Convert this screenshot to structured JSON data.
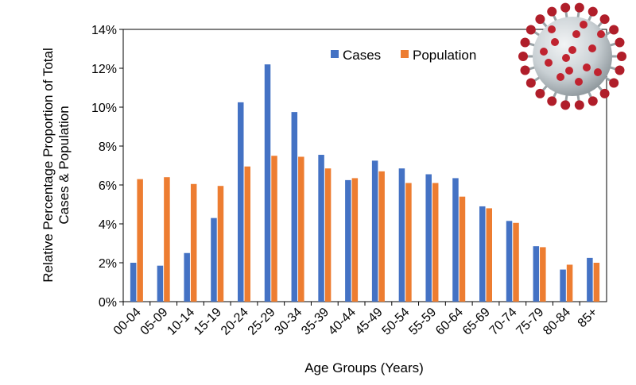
{
  "chart_data": {
    "type": "bar",
    "categories": [
      "00-04",
      "05-09",
      "10-14",
      "15-19",
      "20-24",
      "25-29",
      "30-34",
      "35-39",
      "40-44",
      "45-49",
      "50-54",
      "55-59",
      "60-64",
      "65-69",
      "70-74",
      "75-79",
      "80-84",
      "85+"
    ],
    "series": [
      {
        "name": "Cases",
        "color": "#4472C4",
        "values": [
          2.0,
          1.85,
          2.5,
          4.3,
          10.25,
          12.2,
          9.75,
          7.55,
          6.25,
          7.25,
          6.85,
          6.55,
          6.35,
          4.9,
          4.15,
          2.85,
          1.65,
          2.25
        ]
      },
      {
        "name": "Population",
        "color": "#ED7D31",
        "values": [
          6.3,
          6.4,
          6.05,
          5.95,
          6.95,
          7.5,
          7.45,
          6.85,
          6.35,
          6.7,
          6.1,
          6.1,
          5.4,
          4.8,
          4.05,
          2.8,
          1.9,
          2.0
        ]
      }
    ],
    "xlabel": "Age Groups (Years)",
    "ylabel_lines": [
      "Relative Percentage Proportion of Total",
      "Cases & Population"
    ],
    "ylim": [
      0,
      14
    ],
    "yticks": [
      0,
      2,
      4,
      6,
      8,
      10,
      12,
      14
    ],
    "ytick_suffix": "%",
    "grid": false,
    "legend": "top-center",
    "decoration": "coronavirus-icon"
  }
}
